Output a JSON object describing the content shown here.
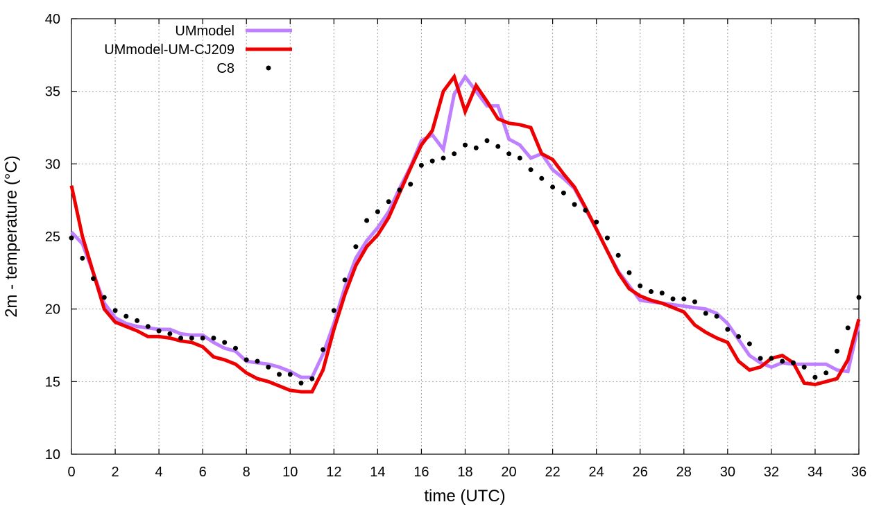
{
  "chart_data": {
    "type": "line",
    "xlabel": "time (UTC)",
    "ylabel": "2m - temperature (°C)",
    "xlim": [
      0,
      36
    ],
    "ylim": [
      10,
      40
    ],
    "xticks": [
      0,
      2,
      4,
      6,
      8,
      10,
      12,
      14,
      16,
      18,
      20,
      22,
      24,
      26,
      28,
      30,
      32,
      34,
      36
    ],
    "yticks": [
      10,
      15,
      20,
      25,
      30,
      35,
      40
    ],
    "grid": true,
    "legend_position": "top-left",
    "series": [
      {
        "name": "UMmodel",
        "style": "line",
        "color": "#bf80ff",
        "x": [
          0,
          0.5,
          1,
          1.5,
          2,
          2.5,
          3,
          3.5,
          4,
          4.5,
          5,
          5.5,
          6,
          6.5,
          7,
          7.5,
          8,
          8.5,
          9,
          9.5,
          10,
          10.5,
          11,
          11.5,
          12,
          12.5,
          13,
          13.5,
          14,
          14.5,
          15,
          15.5,
          16,
          16.5,
          17,
          17.5,
          18,
          18.5,
          19,
          19.5,
          20,
          20.5,
          21,
          21.5,
          22,
          22.5,
          23,
          23.5,
          24,
          24.5,
          25,
          25.5,
          26,
          26.5,
          27,
          27.5,
          28,
          28.5,
          29,
          29.5,
          30,
          30.5,
          31,
          31.5,
          32,
          32.5,
          33,
          33.5,
          34,
          34.5,
          35,
          35.5,
          36
        ],
        "values": [
          25.3,
          24.5,
          22.5,
          20.4,
          19.4,
          19.0,
          18.8,
          18.7,
          18.6,
          18.6,
          18.3,
          18.2,
          18.2,
          17.7,
          17.3,
          17.1,
          16.4,
          16.3,
          16.2,
          16.0,
          15.7,
          15.3,
          15.3,
          16.9,
          19.0,
          21.5,
          23.5,
          24.7,
          25.6,
          26.7,
          28.3,
          29.8,
          31.6,
          32.0,
          31.0,
          34.8,
          36.0,
          35.0,
          34.0,
          34.0,
          31.7,
          31.3,
          30.4,
          30.7,
          29.6,
          29.0,
          28.3,
          26.9,
          25.5,
          24.0,
          22.6,
          21.6,
          20.6,
          20.5,
          20.4,
          20.3,
          20.2,
          20.1,
          20.0,
          19.7,
          19.0,
          17.9,
          16.8,
          16.3,
          16.0,
          16.3,
          16.2,
          16.2,
          16.2,
          16.2,
          15.8,
          15.7,
          19.0
        ]
      },
      {
        "name": "UMmodel-UM-CJ209",
        "style": "line",
        "color": "#ee0000",
        "x": [
          0,
          0.5,
          1,
          1.5,
          2,
          2.5,
          3,
          3.5,
          4,
          4.5,
          5,
          5.5,
          6,
          6.5,
          7,
          7.5,
          8,
          8.5,
          9,
          9.5,
          10,
          10.5,
          11,
          11.5,
          12,
          12.5,
          13,
          13.5,
          14,
          14.5,
          15,
          15.5,
          16,
          16.5,
          17,
          17.5,
          18,
          18.5,
          19,
          19.5,
          20,
          20.5,
          21,
          21.5,
          22,
          22.5,
          23,
          23.5,
          24,
          24.5,
          25,
          25.5,
          26,
          26.5,
          27,
          27.5,
          28,
          28.5,
          29,
          29.5,
          30,
          30.5,
          31,
          31.5,
          32,
          32.5,
          33,
          33.5,
          34,
          34.5,
          35,
          35.5,
          36
        ],
        "values": [
          28.5,
          25.0,
          22.5,
          20.0,
          19.1,
          18.8,
          18.5,
          18.1,
          18.1,
          18.0,
          17.8,
          17.7,
          17.4,
          16.7,
          16.5,
          16.2,
          15.6,
          15.2,
          15.0,
          14.7,
          14.4,
          14.3,
          14.3,
          15.8,
          18.6,
          21.0,
          23.0,
          24.3,
          25.1,
          26.3,
          28.0,
          29.7,
          31.3,
          32.3,
          35.0,
          36.0,
          33.6,
          35.4,
          34.3,
          33.1,
          32.8,
          32.7,
          32.5,
          30.7,
          30.3,
          29.3,
          28.4,
          27.0,
          25.5,
          24.0,
          22.5,
          21.4,
          20.9,
          20.6,
          20.4,
          20.1,
          19.8,
          18.9,
          18.4,
          18.0,
          17.7,
          16.4,
          15.8,
          16.0,
          16.6,
          16.8,
          16.3,
          14.9,
          14.8,
          15.0,
          15.2,
          16.5,
          19.3
        ]
      },
      {
        "name": "C8",
        "style": "points",
        "color": "#000000",
        "x": [
          0,
          0.5,
          1,
          1.5,
          2,
          2.5,
          3,
          3.5,
          4,
          4.5,
          5,
          5.5,
          6,
          6.5,
          7,
          7.5,
          8,
          8.5,
          9,
          9.5,
          10,
          10.5,
          11,
          11.5,
          12,
          12.5,
          13,
          13.5,
          14,
          14.5,
          15,
          15.5,
          16,
          16.5,
          17,
          17.5,
          18,
          18.5,
          19,
          19.5,
          20,
          20.5,
          21,
          21.5,
          22,
          22.5,
          23,
          23.5,
          24,
          24.5,
          25,
          25.5,
          26,
          26.5,
          27,
          27.5,
          28,
          28.5,
          29,
          29.5,
          30,
          30.5,
          31,
          31.5,
          32,
          32.5,
          33,
          33.5,
          34,
          34.5,
          35,
          35.5,
          36
        ],
        "values": [
          24.9,
          23.5,
          22.1,
          20.8,
          19.9,
          19.5,
          19.2,
          18.8,
          18.5,
          18.3,
          18.0,
          18.0,
          18.0,
          18.0,
          17.7,
          17.3,
          16.5,
          16.4,
          16.0,
          15.5,
          15.5,
          14.9,
          15.2,
          17.2,
          19.9,
          22.0,
          24.3,
          26.1,
          26.7,
          27.4,
          28.2,
          28.6,
          29.9,
          30.2,
          30.4,
          30.7,
          31.3,
          31.1,
          31.6,
          31.2,
          30.7,
          30.4,
          29.6,
          29.0,
          28.4,
          28.0,
          27.2,
          26.8,
          26.0,
          24.9,
          23.7,
          22.5,
          21.6,
          21.2,
          21.1,
          20.7,
          20.7,
          20.5,
          19.7,
          19.5,
          18.6,
          18.1,
          17.6,
          16.6,
          16.6,
          16.4,
          16.3,
          16.0,
          15.3,
          15.6,
          17.1,
          18.7,
          20.8
        ]
      }
    ]
  }
}
